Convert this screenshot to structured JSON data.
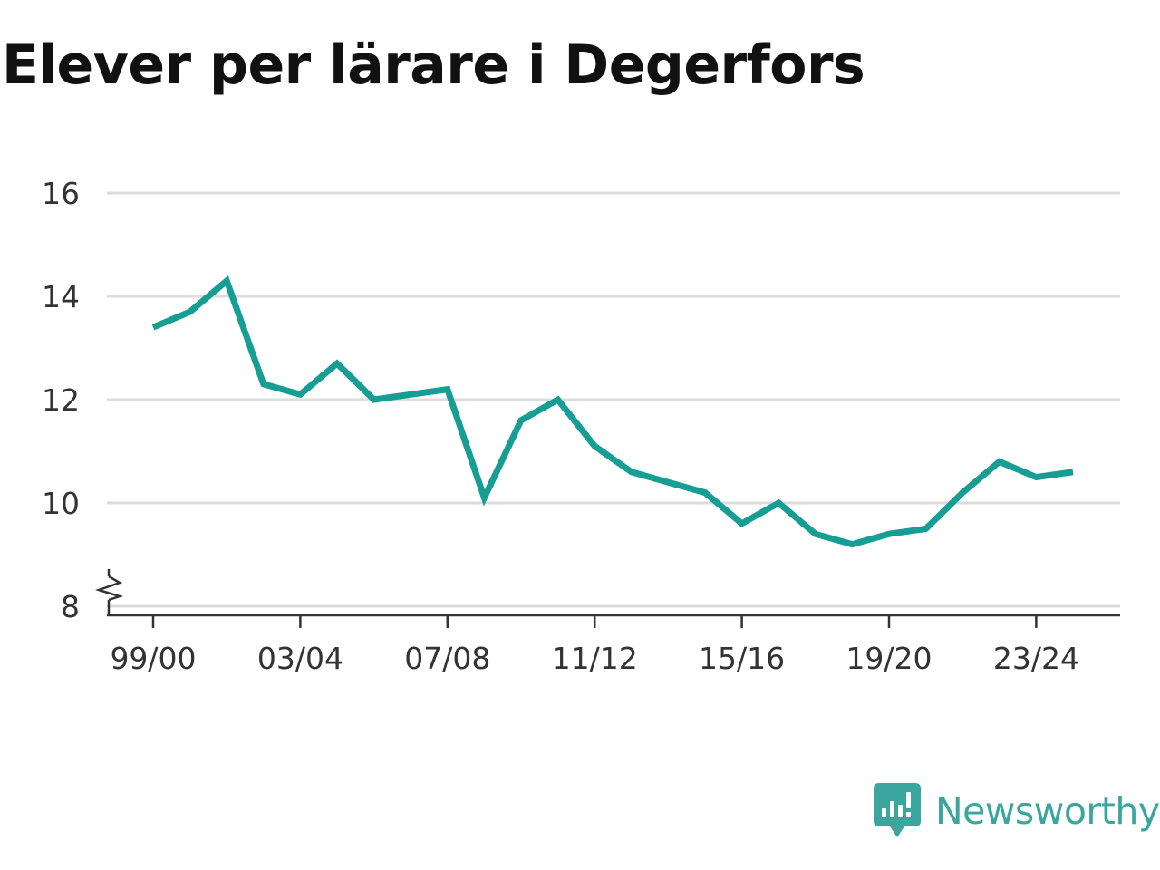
{
  "chart_data": {
    "type": "line",
    "title": "Elever per lärare i Degerfors",
    "xlabel": "",
    "ylabel": "",
    "ylim": [
      8,
      16
    ],
    "y_ticks": [
      8,
      10,
      12,
      14,
      16
    ],
    "y_axis_break": true,
    "grid": true,
    "line_color": "#169d94",
    "x": [
      "99/00",
      "00/01",
      "01/02",
      "02/03",
      "03/04",
      "04/05",
      "05/06",
      "06/07",
      "07/08",
      "08/09",
      "09/10",
      "10/11",
      "11/12",
      "12/13",
      "13/14",
      "14/15",
      "15/16",
      "16/17",
      "17/18",
      "18/19",
      "19/20",
      "20/21",
      "21/22",
      "22/23",
      "23/24",
      "24/25"
    ],
    "x_tick_labels": [
      "99/00",
      "03/04",
      "07/08",
      "11/12",
      "15/16",
      "19/20",
      "23/24"
    ],
    "series": [
      {
        "values": [
          13.4,
          13.7,
          14.3,
          12.3,
          12.1,
          12.7,
          12.0,
          12.1,
          12.2,
          10.1,
          11.6,
          12.0,
          11.1,
          10.6,
          10.4,
          10.2,
          9.6,
          10.0,
          9.4,
          9.2,
          9.4,
          9.5,
          10.2,
          10.8,
          10.5,
          10.6
        ]
      }
    ]
  },
  "brand": {
    "name": "Newsworthy",
    "color": "#3aa69e"
  }
}
